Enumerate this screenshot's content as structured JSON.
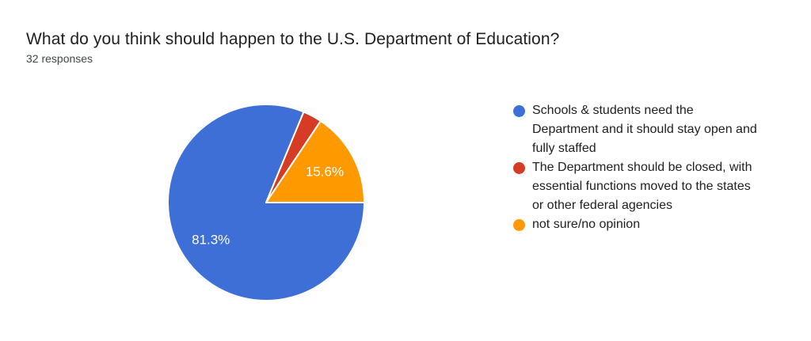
{
  "header": {
    "title": "What do you think should happen to the U.S. Department of Education?",
    "responses": "32 responses"
  },
  "chart_data": {
    "type": "pie",
    "title": "What do you think should happen to the U.S. Department of Education?",
    "subtitle": "32 responses",
    "total_responses": 32,
    "start_angle_deg": 90,
    "direction": "clockwise",
    "legend_position": "right",
    "background_color": "#ffffff",
    "slice_border_color": "#ffffff",
    "slices": [
      {
        "label": "Schools & students need the Department and it should stay open and fully staffed",
        "legend_lines": [
          "Schools & students need the",
          "Department and it should stay open and",
          "fully staffed"
        ],
        "responses": 26,
        "percent": 81.3,
        "percent_label": "81.3%",
        "color": "#3D6FD6"
      },
      {
        "label": "The Department should be closed, with essential functions moved to the states or other federal agencies",
        "legend_lines": [
          "The Department should be closed, with",
          "essential functions moved to the states",
          "or other federal agencies"
        ],
        "responses": 1,
        "percent": 3.1,
        "percent_label": "",
        "color": "#D63B25"
      },
      {
        "label": "not sure/no opinion",
        "legend_lines": [
          "not sure/no opinion"
        ],
        "responses": 5,
        "percent": 15.6,
        "percent_label": "15.6%",
        "color": "#FF9900"
      }
    ]
  }
}
